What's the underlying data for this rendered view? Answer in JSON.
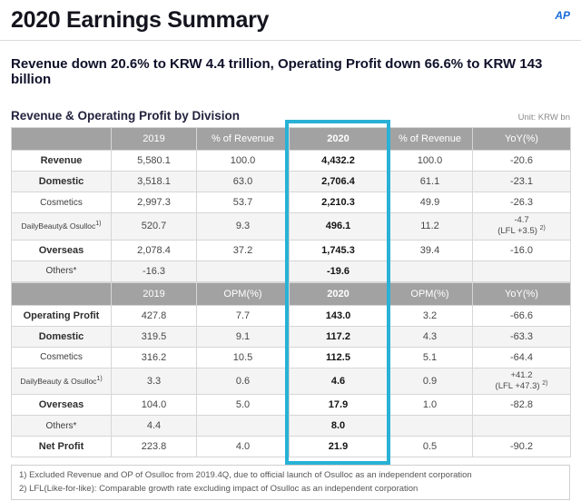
{
  "page": {
    "title": "2020 Earnings Summary",
    "logo": "AP",
    "subtitle": "Revenue down 20.6% to KRW 4.4 trillion, Operating Profit down 66.6% to KRW 143 billion",
    "section_title": "Revenue & Operating Profit by Division",
    "unit_label": "Unit: KRW bn"
  },
  "colors": {
    "accent": "#29b1d6",
    "header_gray": "#a2a2a2",
    "logo_blue": "#1a6bd8"
  },
  "table": {
    "highlight_col": 3,
    "sections": [
      {
        "header": [
          "",
          "2019",
          "% of Revenue",
          "2020",
          "% of Revenue",
          "YoY(%)"
        ],
        "rows": [
          {
            "label": "Revenue",
            "bold": true,
            "cells": [
              "5,580.1",
              "100.0",
              "4,432.2",
              "100.0",
              "-20.6"
            ]
          },
          {
            "label": "Domestic",
            "bold": true,
            "cells": [
              "3,518.1",
              "63.0",
              "2,706.4",
              "61.1",
              "-23.1"
            ]
          },
          {
            "label": "Cosmetics",
            "bold": false,
            "cells": [
              "2,997.3",
              "53.7",
              "2,210.3",
              "49.9",
              "-26.3"
            ]
          },
          {
            "label": "DailyBeauty& Osulloc",
            "label_sup": "1)",
            "bold": false,
            "small": true,
            "cells": [
              "520.7",
              "9.3",
              "496.1",
              "11.2",
              {
                "lines": [
                  "-4.7",
                  "(LFL +3.5)"
                ],
                "sup": "2)"
              }
            ]
          },
          {
            "label": "Overseas",
            "bold": true,
            "cells": [
              "2,078.4",
              "37.2",
              "1,745.3",
              "39.4",
              "-16.0"
            ]
          },
          {
            "label": "Others*",
            "bold": false,
            "cells": [
              "-16.3",
              "",
              "-19.6",
              "",
              ""
            ]
          }
        ]
      },
      {
        "header": [
          "",
          "2019",
          "OPM(%)",
          "2020",
          "OPM(%)",
          "YoY(%)"
        ],
        "rows": [
          {
            "label": "Operating Profit",
            "bold": true,
            "cells": [
              "427.8",
              "7.7",
              "143.0",
              "3.2",
              "-66.6"
            ]
          },
          {
            "label": "Domestic",
            "bold": true,
            "cells": [
              "319.5",
              "9.1",
              "117.2",
              "4.3",
              "-63.3"
            ]
          },
          {
            "label": "Cosmetics",
            "bold": false,
            "cells": [
              "316.2",
              "10.5",
              "112.5",
              "5.1",
              "-64.4"
            ]
          },
          {
            "label": "DailyBeauty & Osulloc",
            "label_sup": "1)",
            "bold": false,
            "small": true,
            "cells": [
              "3.3",
              "0.6",
              "4.6",
              "0.9",
              {
                "lines": [
                  "+41.2",
                  "(LFL +47.3)"
                ],
                "sup": "2)"
              }
            ]
          },
          {
            "label": "Overseas",
            "bold": true,
            "cells": [
              "104.0",
              "5.0",
              "17.9",
              "1.0",
              "-82.8"
            ]
          },
          {
            "label": "Others*",
            "bold": false,
            "cells": [
              "4.4",
              "",
              "8.0",
              "",
              ""
            ]
          },
          {
            "label": "Net Profit",
            "bold": true,
            "cells": [
              "223.8",
              "4.0",
              "21.9",
              "0.5",
              "-90.2"
            ]
          }
        ]
      }
    ]
  },
  "footnotes": [
    "1) Excluded Revenue and OP of Osulloc from 2019.4Q, due to official launch of Osulloc as an independent corporation",
    "2) LFL(Like-for-like): Comparable growth rate excluding impact of Osulloc as an independent corporation"
  ]
}
